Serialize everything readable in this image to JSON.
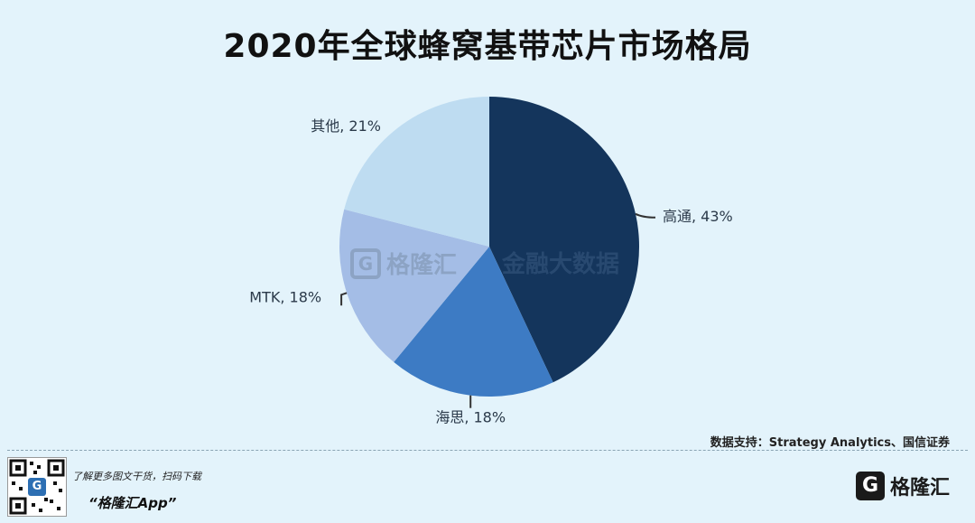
{
  "title": "2020年全球蜂窝基带芯片市场格局",
  "chart_data": {
    "type": "pie",
    "slices": [
      {
        "label": "高通",
        "value": 43,
        "color": "#14355c",
        "text": "高通, 43%"
      },
      {
        "label": "海思",
        "value": 18,
        "color": "#3d7bc4",
        "text": "海思, 18%"
      },
      {
        "label": "MTK",
        "value": 18,
        "color": "#a4bde6",
        "text": "MTK, 18%"
      },
      {
        "label": "其他",
        "value": 21,
        "color": "#bedcf1",
        "text": "其他, 21%"
      }
    ]
  },
  "source": "数据支持：Strategy Analytics、国信证券",
  "promo": {
    "line1": "了解更多图文干货，扫码下载",
    "line2": "“格隆汇App”"
  },
  "brand": {
    "mark": "G",
    "name": "格隆汇"
  },
  "watermark": {
    "mark": "G",
    "name": "格隆汇",
    "right": "金融大数据"
  }
}
